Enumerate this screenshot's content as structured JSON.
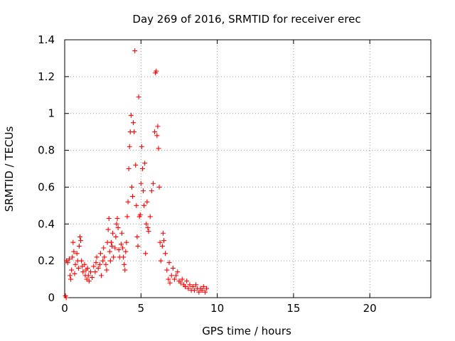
{
  "chart_data": {
    "type": "scatter",
    "title": "Day 269 of 2016, SRMTID for receiver erec",
    "xlabel": "GPS time / hours",
    "ylabel": "SRMTID / TECUs",
    "xlim": [
      0,
      24
    ],
    "ylim": [
      0,
      1.4
    ],
    "xticks": [
      0,
      5,
      10,
      15,
      20
    ],
    "yticks": [
      0,
      0.2,
      0.4,
      0.6,
      0.8,
      1.0,
      1.2,
      1.4
    ],
    "xtick_labels": [
      "0",
      "5",
      "10",
      "15",
      "20"
    ],
    "ytick_labels": [
      "0",
      "0.2",
      "0.4",
      "0.6",
      "0.8",
      "1",
      "1.2",
      "1.4"
    ],
    "grid": true,
    "marker": "+",
    "series": [
      {
        "name": "SRMTID",
        "color": "#ff0000",
        "points": [
          [
            0.05,
            0.01
          ],
          [
            0.1,
            0.0
          ],
          [
            0.12,
            0.2
          ],
          [
            0.2,
            0.19
          ],
          [
            0.3,
            0.21
          ],
          [
            0.35,
            0.12
          ],
          [
            0.4,
            0.1
          ],
          [
            0.45,
            0.15
          ],
          [
            0.5,
            0.22
          ],
          [
            0.55,
            0.3
          ],
          [
            0.6,
            0.25
          ],
          [
            0.65,
            0.13
          ],
          [
            0.7,
            0.18
          ],
          [
            0.8,
            0.24
          ],
          [
            0.85,
            0.2
          ],
          [
            0.9,
            0.16
          ],
          [
            0.95,
            0.28
          ],
          [
            1.0,
            0.33
          ],
          [
            1.05,
            0.31
          ],
          [
            1.1,
            0.2
          ],
          [
            1.15,
            0.17
          ],
          [
            1.2,
            0.14
          ],
          [
            1.3,
            0.18
          ],
          [
            1.35,
            0.12
          ],
          [
            1.4,
            0.15
          ],
          [
            1.45,
            0.1
          ],
          [
            1.5,
            0.16
          ],
          [
            1.55,
            0.12
          ],
          [
            1.6,
            0.09
          ],
          [
            1.7,
            0.14
          ],
          [
            1.8,
            0.11
          ],
          [
            1.9,
            0.17
          ],
          [
            2.0,
            0.14
          ],
          [
            2.05,
            0.19
          ],
          [
            2.1,
            0.22
          ],
          [
            2.2,
            0.16
          ],
          [
            2.3,
            0.18
          ],
          [
            2.35,
            0.24
          ],
          [
            2.4,
            0.12
          ],
          [
            2.5,
            0.2
          ],
          [
            2.55,
            0.27
          ],
          [
            2.6,
            0.22
          ],
          [
            2.7,
            0.18
          ],
          [
            2.75,
            0.15
          ],
          [
            2.8,
            0.3
          ],
          [
            2.85,
            0.37
          ],
          [
            2.9,
            0.43
          ],
          [
            2.95,
            0.25
          ],
          [
            3.0,
            0.2
          ],
          [
            3.05,
            0.3
          ],
          [
            3.1,
            0.28
          ],
          [
            3.15,
            0.35
          ],
          [
            3.2,
            0.22
          ],
          [
            3.3,
            0.27
          ],
          [
            3.35,
            0.33
          ],
          [
            3.4,
            0.4
          ],
          [
            3.45,
            0.43
          ],
          [
            3.5,
            0.38
          ],
          [
            3.55,
            0.26
          ],
          [
            3.6,
            0.22
          ],
          [
            3.7,
            0.29
          ],
          [
            3.75,
            0.35
          ],
          [
            3.8,
            0.27
          ],
          [
            3.85,
            0.22
          ],
          [
            3.9,
            0.18
          ],
          [
            3.95,
            0.15
          ],
          [
            4.0,
            0.25
          ],
          [
            4.05,
            0.3
          ],
          [
            4.1,
            0.44
          ],
          [
            4.15,
            0.52
          ],
          [
            4.2,
            0.7
          ],
          [
            4.25,
            0.82
          ],
          [
            4.3,
            0.9
          ],
          [
            4.35,
            0.99
          ],
          [
            4.4,
            0.6
          ],
          [
            4.45,
            0.55
          ],
          [
            4.5,
            0.95
          ],
          [
            4.55,
            0.9
          ],
          [
            4.6,
            1.34
          ],
          [
            4.65,
            0.72
          ],
          [
            4.7,
            0.5
          ],
          [
            4.75,
            0.33
          ],
          [
            4.8,
            0.28
          ],
          [
            4.85,
            1.09
          ],
          [
            4.9,
            0.44
          ],
          [
            4.95,
            0.45
          ],
          [
            5.0,
            0.62
          ],
          [
            5.05,
            0.82
          ],
          [
            5.1,
            0.7
          ],
          [
            5.15,
            0.58
          ],
          [
            5.2,
            0.5
          ],
          [
            5.25,
            0.73
          ],
          [
            5.3,
            0.24
          ],
          [
            5.35,
            0.4
          ],
          [
            5.4,
            0.52
          ],
          [
            5.45,
            0.38
          ],
          [
            5.5,
            0.36
          ],
          [
            5.6,
            0.44
          ],
          [
            5.7,
            0.58
          ],
          [
            5.8,
            0.62
          ],
          [
            5.9,
            0.9
          ],
          [
            5.95,
            1.22
          ],
          [
            6.0,
            1.23
          ],
          [
            6.05,
            0.88
          ],
          [
            6.1,
            0.93
          ],
          [
            6.15,
            0.81
          ],
          [
            6.2,
            0.6
          ],
          [
            6.25,
            0.3
          ],
          [
            6.3,
            0.2
          ],
          [
            6.4,
            0.28
          ],
          [
            6.45,
            0.35
          ],
          [
            6.5,
            0.31
          ],
          [
            6.6,
            0.24
          ],
          [
            6.7,
            0.15
          ],
          [
            6.8,
            0.1
          ],
          [
            6.85,
            0.19
          ],
          [
            6.9,
            0.08
          ],
          [
            7.0,
            0.12
          ],
          [
            7.1,
            0.16
          ],
          [
            7.2,
            0.1
          ],
          [
            7.3,
            0.12
          ],
          [
            7.4,
            0.14
          ],
          [
            7.5,
            0.09
          ],
          [
            7.6,
            0.08
          ],
          [
            7.7,
            0.1
          ],
          [
            7.8,
            0.07
          ],
          [
            7.9,
            0.06
          ],
          [
            8.0,
            0.09
          ],
          [
            8.1,
            0.05
          ],
          [
            8.2,
            0.07
          ],
          [
            8.3,
            0.04
          ],
          [
            8.4,
            0.06
          ],
          [
            8.5,
            0.04
          ],
          [
            8.6,
            0.07
          ],
          [
            8.7,
            0.05
          ],
          [
            8.8,
            0.03
          ],
          [
            8.9,
            0.05
          ],
          [
            9.0,
            0.04
          ],
          [
            9.1,
            0.06
          ],
          [
            9.2,
            0.03
          ],
          [
            9.3,
            0.05
          ]
        ]
      }
    ]
  }
}
